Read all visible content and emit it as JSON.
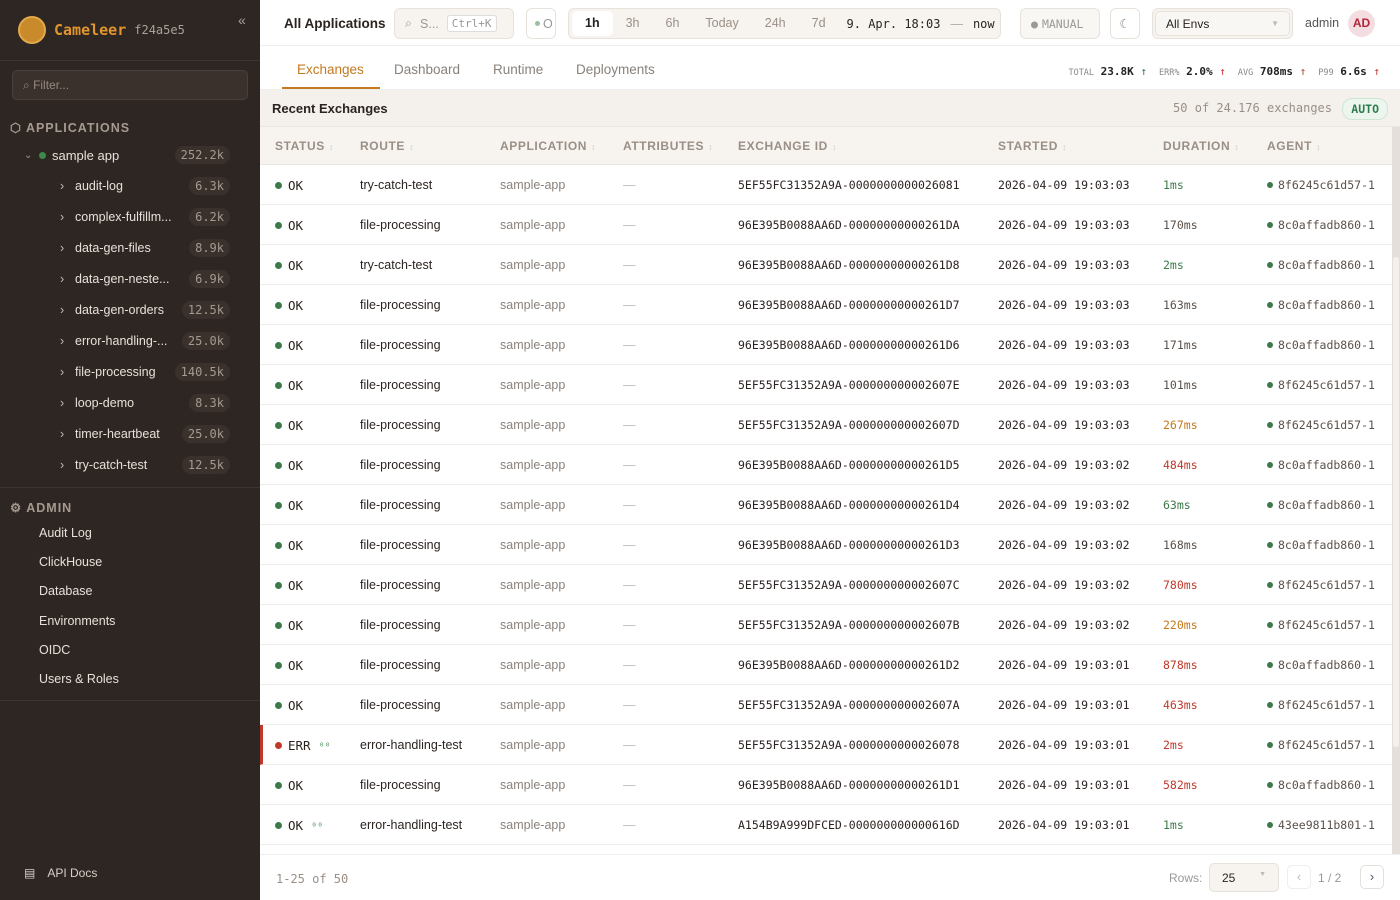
{
  "brand": {
    "name": "Cameleer",
    "version": "f24a5e5"
  },
  "sidebar": {
    "filter_placeholder": "Filter...",
    "applications_label": "APPLICATIONS",
    "app": {
      "name": "sample app",
      "count": "252.2k"
    },
    "routes": [
      {
        "name": "audit-log",
        "count": "6.3k"
      },
      {
        "name": "complex-fulfillm...",
        "count": "6.2k"
      },
      {
        "name": "data-gen-files",
        "count": "8.9k"
      },
      {
        "name": "data-gen-neste...",
        "count": "6.9k"
      },
      {
        "name": "data-gen-orders",
        "count": "12.5k"
      },
      {
        "name": "error-handling-...",
        "count": "25.0k"
      },
      {
        "name": "file-processing",
        "count": "140.5k"
      },
      {
        "name": "loop-demo",
        "count": "8.3k"
      },
      {
        "name": "timer-heartbeat",
        "count": "25.0k"
      },
      {
        "name": "try-catch-test",
        "count": "12.5k"
      }
    ],
    "admin_label": "ADMIN",
    "admin_items": [
      "Audit Log",
      "ClickHouse",
      "Database",
      "Environments",
      "OIDC",
      "Users & Roles"
    ],
    "api_docs": "API Docs"
  },
  "topbar": {
    "title": "All Applications",
    "search_placeholder": "S...",
    "search_shortcut": "Ctrl+K",
    "status_label": "O",
    "time_ranges": [
      "1h",
      "3h",
      "6h",
      "Today",
      "24h",
      "7d"
    ],
    "active_range": "1h",
    "range_from": "9. Apr. 18:03",
    "range_sep": "—",
    "range_to": "now",
    "refresh_mode": "MANUAL",
    "env": "All Envs",
    "user": "admin",
    "avatar": "AD"
  },
  "tabs": [
    "Exchanges",
    "Dashboard",
    "Runtime",
    "Deployments"
  ],
  "kpis": [
    {
      "label": "TOTAL",
      "value": "23.8K",
      "trend": "↑",
      "color": "#2e7d4f"
    },
    {
      "label": "ERR%",
      "value": "2.0%",
      "trend": "↑",
      "color": "#c0392b"
    },
    {
      "label": "AVG",
      "value": "708ms",
      "trend": "↑",
      "color": "#c0392b"
    },
    {
      "label": "P99",
      "value": "6.6s",
      "trend": "↑",
      "color": "#c0392b"
    }
  ],
  "recent": {
    "title": "Recent Exchanges",
    "summary": "50 of 24.176 exchanges",
    "auto": "AUTO"
  },
  "columns": [
    "STATUS",
    "ROUTE",
    "APPLICATION",
    "ATTRIBUTES",
    "EXCHANGE ID",
    "STARTED",
    "DURATION",
    "AGENT"
  ],
  "colors": {
    "ok": "#3d7a4a",
    "err": "#c0392b",
    "fast": "#3d7a4a",
    "normal": "#5a514b",
    "slow": "#c47a1e",
    "very_slow": "#c0392b",
    "accent": "#c47a1e"
  },
  "rows": [
    {
      "status": "OK",
      "route": "try-catch-test",
      "app": "sample-app",
      "attr": "—",
      "id": "5EF55FC31352A9A-0000000000026081",
      "started": "2026-04-09 19:03:03",
      "duration": "1ms",
      "dclass": "fast",
      "agent": "8f6245c61d57-1"
    },
    {
      "status": "OK",
      "route": "file-processing",
      "app": "sample-app",
      "attr": "—",
      "id": "96E395B0088AA6D-00000000000261DA",
      "started": "2026-04-09 19:03:03",
      "duration": "170ms",
      "dclass": "normal",
      "agent": "8c0affadb860-1"
    },
    {
      "status": "OK",
      "route": "try-catch-test",
      "app": "sample-app",
      "attr": "—",
      "id": "96E395B0088AA6D-00000000000261D8",
      "started": "2026-04-09 19:03:03",
      "duration": "2ms",
      "dclass": "fast",
      "agent": "8c0affadb860-1"
    },
    {
      "status": "OK",
      "route": "file-processing",
      "app": "sample-app",
      "attr": "—",
      "id": "96E395B0088AA6D-00000000000261D7",
      "started": "2026-04-09 19:03:03",
      "duration": "163ms",
      "dclass": "normal",
      "agent": "8c0affadb860-1"
    },
    {
      "status": "OK",
      "route": "file-processing",
      "app": "sample-app",
      "attr": "—",
      "id": "96E395B0088AA6D-00000000000261D6",
      "started": "2026-04-09 19:03:03",
      "duration": "171ms",
      "dclass": "normal",
      "agent": "8c0affadb860-1"
    },
    {
      "status": "OK",
      "route": "file-processing",
      "app": "sample-app",
      "attr": "—",
      "id": "5EF55FC31352A9A-000000000002607E",
      "started": "2026-04-09 19:03:03",
      "duration": "101ms",
      "dclass": "normal",
      "agent": "8f6245c61d57-1"
    },
    {
      "status": "OK",
      "route": "file-processing",
      "app": "sample-app",
      "attr": "—",
      "id": "5EF55FC31352A9A-000000000002607D",
      "started": "2026-04-09 19:03:03",
      "duration": "267ms",
      "dclass": "slow",
      "agent": "8f6245c61d57-1"
    },
    {
      "status": "OK",
      "route": "file-processing",
      "app": "sample-app",
      "attr": "—",
      "id": "96E395B0088AA6D-00000000000261D5",
      "started": "2026-04-09 19:03:02",
      "duration": "484ms",
      "dclass": "very_slow",
      "agent": "8c0affadb860-1"
    },
    {
      "status": "OK",
      "route": "file-processing",
      "app": "sample-app",
      "attr": "—",
      "id": "96E395B0088AA6D-00000000000261D4",
      "started": "2026-04-09 19:03:02",
      "duration": "63ms",
      "dclass": "fast",
      "agent": "8c0affadb860-1"
    },
    {
      "status": "OK",
      "route": "file-processing",
      "app": "sample-app",
      "attr": "—",
      "id": "96E395B0088AA6D-00000000000261D3",
      "started": "2026-04-09 19:03:02",
      "duration": "168ms",
      "dclass": "normal",
      "agent": "8c0affadb860-1"
    },
    {
      "status": "OK",
      "route": "file-processing",
      "app": "sample-app",
      "attr": "—",
      "id": "5EF55FC31352A9A-000000000002607C",
      "started": "2026-04-09 19:03:02",
      "duration": "780ms",
      "dclass": "very_slow",
      "agent": "8f6245c61d57-1"
    },
    {
      "status": "OK",
      "route": "file-processing",
      "app": "sample-app",
      "attr": "—",
      "id": "5EF55FC31352A9A-000000000002607B",
      "started": "2026-04-09 19:03:02",
      "duration": "220ms",
      "dclass": "slow",
      "agent": "8f6245c61d57-1"
    },
    {
      "status": "OK",
      "route": "file-processing",
      "app": "sample-app",
      "attr": "—",
      "id": "96E395B0088AA6D-00000000000261D2",
      "started": "2026-04-09 19:03:01",
      "duration": "878ms",
      "dclass": "very_slow",
      "agent": "8c0affadb860-1"
    },
    {
      "status": "OK",
      "route": "file-processing",
      "app": "sample-app",
      "attr": "—",
      "id": "5EF55FC31352A9A-000000000002607A",
      "started": "2026-04-09 19:03:01",
      "duration": "463ms",
      "dclass": "very_slow",
      "agent": "8f6245c61d57-1"
    },
    {
      "status": "ERR",
      "trace": true,
      "route": "error-handling-test",
      "app": "sample-app",
      "attr": "—",
      "id": "5EF55FC31352A9A-0000000000026078",
      "started": "2026-04-09 19:03:01",
      "duration": "2ms",
      "dclass": "very_slow",
      "agent": "8f6245c61d57-1"
    },
    {
      "status": "OK",
      "route": "file-processing",
      "app": "sample-app",
      "attr": "—",
      "id": "96E395B0088AA6D-00000000000261D1",
      "started": "2026-04-09 19:03:01",
      "duration": "582ms",
      "dclass": "very_slow",
      "agent": "8c0affadb860-1"
    },
    {
      "status": "OK",
      "trace": true,
      "route": "error-handling-test",
      "app": "sample-app",
      "attr": "—",
      "id": "A154B9A999DFCED-000000000000616D",
      "started": "2026-04-09 19:03:01",
      "duration": "1ms",
      "dclass": "fast",
      "agent": "43ee9811b801-1"
    }
  ],
  "footer": {
    "range": "1-25 of 50",
    "rows_label": "Rows:",
    "rows_value": "25",
    "page": "1 / 2"
  }
}
